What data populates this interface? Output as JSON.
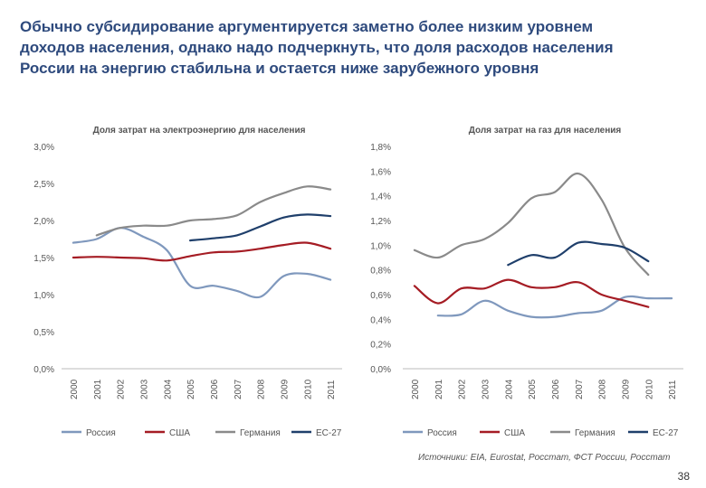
{
  "slide": {
    "title_lines": [
      "Обычно субсидирование аргументируется заметно более низким уровнем",
      "доходов населения, однако надо подчеркнуть, что доля расходов населения",
      "России на энергию стабильна и остается ниже зарубежного уровня"
    ],
    "source": "Источники: EIA, Eurostat, Росстат, ФСТ России, Росстат",
    "page_number": "38"
  },
  "colors": {
    "russia": "#7f98bd",
    "usa": "#a51c24",
    "germany": "#8a8a8a",
    "eu27": "#1f3f6b",
    "axis_text": "#555555",
    "title_text": "#555555"
  },
  "chart_data": [
    {
      "type": "line",
      "title": "Доля затрат на электроэнергию для населения",
      "x": [
        2000,
        2001,
        2002,
        2003,
        2004,
        2005,
        2006,
        2007,
        2008,
        2009,
        2010,
        2011
      ],
      "tick_labels": [
        "2000",
        "2001",
        "2002",
        "2003",
        "2004",
        "2005",
        "2006",
        "2007",
        "2008",
        "2009",
        "2010",
        "2011"
      ],
      "y_ticks": [
        "0,0%",
        "0,5%",
        "1,0%",
        "1,5%",
        "2,0%",
        "2,5%",
        "3,0%"
      ],
      "ylim": [
        0,
        3.0
      ],
      "series": [
        {
          "name": "Россия",
          "key": "russia",
          "values": [
            1.7,
            1.75,
            1.9,
            1.78,
            1.6,
            1.12,
            1.12,
            1.05,
            0.97,
            1.25,
            1.28,
            1.2
          ]
        },
        {
          "name": "США",
          "key": "usa",
          "values": [
            1.5,
            1.51,
            1.5,
            1.49,
            1.46,
            1.52,
            1.57,
            1.58,
            1.62,
            1.67,
            1.7,
            1.62
          ]
        },
        {
          "name": "Германия",
          "key": "germany",
          "values": [
            null,
            1.8,
            1.9,
            1.93,
            1.93,
            2.0,
            2.02,
            2.07,
            2.25,
            2.37,
            2.46,
            2.42
          ]
        },
        {
          "name": "ЕС-27",
          "key": "eu27",
          "values": [
            null,
            null,
            null,
            null,
            null,
            1.73,
            1.76,
            1.8,
            1.92,
            2.04,
            2.08,
            2.06
          ]
        }
      ],
      "legend": "bottom"
    },
    {
      "type": "line",
      "title": "Доля затрат на газ для населения",
      "x": [
        2000,
        2001,
        2002,
        2003,
        2004,
        2005,
        2006,
        2007,
        2008,
        2009,
        2010,
        2011
      ],
      "tick_labels": [
        "2000",
        "2001",
        "2002",
        "2003",
        "2004",
        "2005",
        "2006",
        "2007",
        "2008",
        "2009",
        "2010",
        "2011"
      ],
      "y_ticks": [
        "0,0%",
        "0,2%",
        "0,4%",
        "0,6%",
        "0,8%",
        "1,0%",
        "1,2%",
        "1,4%",
        "1,6%",
        "1,8%"
      ],
      "ylim": [
        0,
        1.8
      ],
      "series": [
        {
          "name": "Россия",
          "key": "russia",
          "values": [
            null,
            0.43,
            0.44,
            0.55,
            0.47,
            0.42,
            0.42,
            0.45,
            0.47,
            0.58,
            0.57,
            0.57
          ]
        },
        {
          "name": "США",
          "key": "usa",
          "values": [
            0.67,
            0.53,
            0.65,
            0.65,
            0.72,
            0.66,
            0.66,
            0.7,
            0.6,
            0.55,
            0.5,
            null
          ]
        },
        {
          "name": "Германия",
          "key": "germany",
          "values": [
            0.96,
            0.9,
            1.0,
            1.05,
            1.18,
            1.38,
            1.43,
            1.58,
            1.37,
            0.98,
            0.76,
            null
          ]
        },
        {
          "name": "ЕС-27",
          "key": "eu27",
          "values": [
            null,
            null,
            null,
            null,
            0.84,
            0.92,
            0.9,
            1.02,
            1.01,
            0.98,
            0.87,
            null
          ]
        }
      ],
      "legend": "bottom"
    }
  ]
}
